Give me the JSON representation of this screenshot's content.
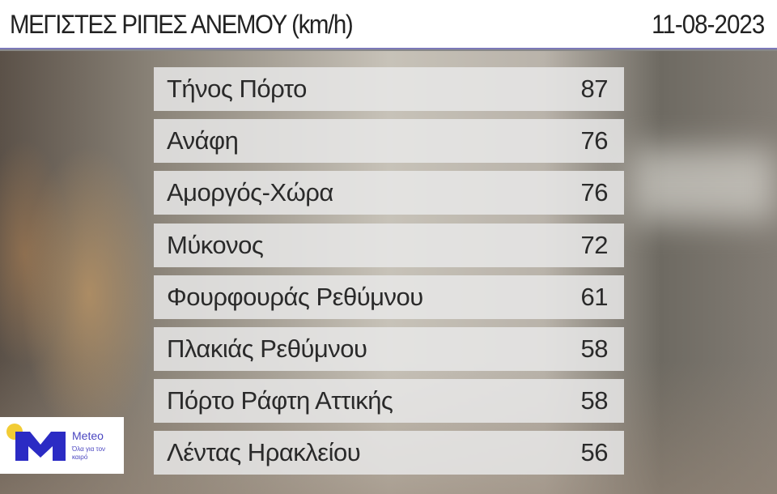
{
  "header": {
    "title": "ΜΕΓΙΣΤΕΣ ΡΙΠΕΣ ΑΝΕΜΟΥ (km/h)",
    "date": "11-08-2023"
  },
  "rows": [
    {
      "station": "Τήνος Πόρτο",
      "value": "87"
    },
    {
      "station": "Ανάφη",
      "value": "76"
    },
    {
      "station": "Αμοργός-Χώρα",
      "value": "76"
    },
    {
      "station": "Μύκονος",
      "value": "72"
    },
    {
      "station": "Φουρφουράς Ρεθύμνου",
      "value": "61"
    },
    {
      "station": "Πλακιάς Ρεθύμνου",
      "value": "58"
    },
    {
      "station": "Πόρτο Ράφτη Αττικής",
      "value": "58"
    },
    {
      "station": "Λέντας Ηρακλείου",
      "value": "56"
    }
  ],
  "logo": {
    "name": "Meteo",
    "tagline": "Όλα για τον καιρό",
    "colors": {
      "blue": "#2b2bc4",
      "yellow": "#f2cc35"
    }
  }
}
